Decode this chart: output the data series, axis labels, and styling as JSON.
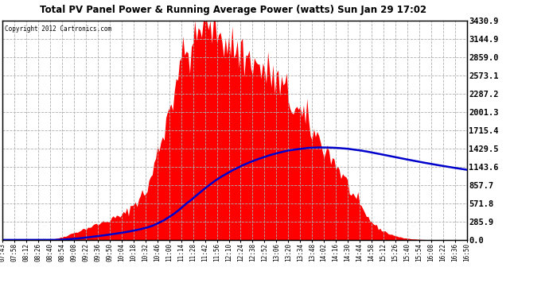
{
  "title": "Total PV Panel Power & Running Average Power (watts) Sun Jan 29 17:02",
  "copyright": "Copyright 2012 Cartronics.com",
  "background_color": "#ffffff",
  "plot_bg_color": "#ffffff",
  "grid_color": "#b0b0b0",
  "fill_color": "#ff0000",
  "line_color": "#0000cc",
  "y_ticks": [
    0.0,
    285.9,
    571.8,
    857.7,
    1143.6,
    1429.5,
    1715.4,
    2001.3,
    2287.2,
    2573.1,
    2859.0,
    3144.9,
    3430.9
  ],
  "y_max": 3430.9,
  "x_labels": [
    "07:43",
    "07:58",
    "08:12",
    "08:26",
    "08:40",
    "08:54",
    "09:08",
    "09:22",
    "09:36",
    "09:50",
    "10:04",
    "10:18",
    "10:32",
    "10:46",
    "11:00",
    "11:14",
    "11:28",
    "11:42",
    "11:56",
    "12:10",
    "12:24",
    "12:38",
    "12:52",
    "13:06",
    "13:20",
    "13:34",
    "13:48",
    "14:02",
    "14:16",
    "14:30",
    "14:44",
    "14:58",
    "15:12",
    "15:26",
    "15:40",
    "15:54",
    "16:08",
    "16:22",
    "16:36",
    "16:50"
  ],
  "n_points": 274
}
